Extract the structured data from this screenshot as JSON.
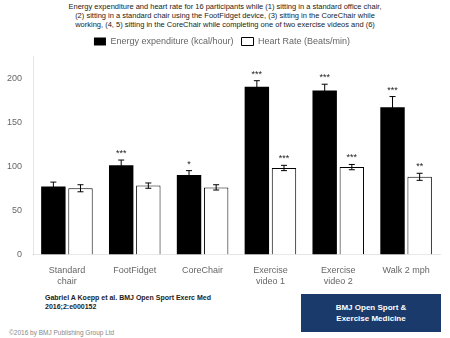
{
  "chart_data": {
    "type": "bar",
    "title": [
      "Energy expenditure and heart rate for 16 participants while (1) sitting in a standard office chair,",
      "(2) sitting in a standard chair using the FootFidget device, (3) sitting in the CoreChair while",
      "working, (4, 5) sitting in the CoreChair while completing one of two exercise videos and (6)"
    ],
    "categories": [
      "Standard\nchair",
      "FootFidget",
      "CoreChair",
      "Exercise\nvideo 1",
      "Exercise\nvideo 2",
      "Walk 2 mph"
    ],
    "series": [
      {
        "name": "Energy expenditure (kcal/hour)",
        "color": "#000000",
        "values": [
          77,
          101,
          90,
          190,
          186,
          167
        ],
        "errors": [
          5,
          6,
          5,
          7,
          7,
          12
        ],
        "annotations": [
          null,
          "***",
          "*",
          "***",
          "***",
          "***"
        ]
      },
      {
        "name": "Heart Rate (Beats/min)",
        "color": "#ffffff",
        "edge_color": "#000000",
        "values": [
          75,
          78,
          76,
          98,
          99,
          88
        ],
        "errors": [
          4,
          3,
          3,
          3,
          3,
          4
        ],
        "annotations": [
          null,
          null,
          null,
          "***",
          "***",
          "**"
        ]
      }
    ],
    "ylim": [
      0,
      225
    ],
    "yticks": [
      0,
      50,
      100,
      150,
      200
    ],
    "grid": false,
    "legend": "top",
    "citation": [
      "Gabriel A Koepp et al. BMJ Open Sport Exerc Med",
      "2016;2:e000152"
    ],
    "copyright": "©2016 by BMJ Publishing Group Ltd",
    "logo": {
      "text": [
        "BMJ Open Sport &",
        "Exercise Medicine"
      ],
      "color": "#1a3a6b"
    }
  }
}
